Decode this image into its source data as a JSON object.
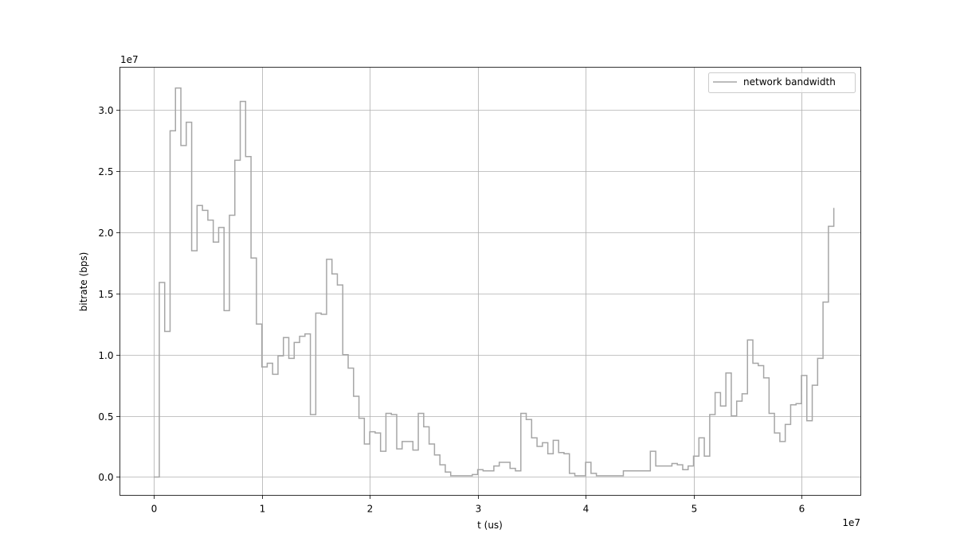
{
  "chart_data": {
    "type": "line",
    "drawstyle": "steps-post",
    "xlabel": "t (us)",
    "ylabel": "bitrate (bps)",
    "x_offset_text": "1e7",
    "y_offset_text": "1e7",
    "xlim": [
      -3150000,
      65500000
    ],
    "ylim": [
      -1500000,
      33500000
    ],
    "x_scale": 10000000,
    "y_scale": 10000000,
    "x_ticks": [
      0,
      10000000,
      20000000,
      30000000,
      40000000,
      50000000,
      60000000
    ],
    "x_tick_labels": [
      "0",
      "1",
      "2",
      "3",
      "4",
      "5",
      "6"
    ],
    "y_ticks": [
      0,
      5000000,
      10000000,
      15000000,
      20000000,
      25000000,
      30000000
    ],
    "y_tick_labels": [
      "0.0",
      "0.5",
      "1.0",
      "1.5",
      "2.0",
      "2.5",
      "3.0"
    ],
    "grid": true,
    "legend_position": "upper right",
    "colors": {
      "series": "#a6a6a6",
      "grid": "#b0b0b0",
      "axes": "#000000"
    },
    "series": [
      {
        "name": "network bandwidth",
        "step_width": 500000,
        "x_start": 0,
        "values": [
          0,
          15900000,
          11900000,
          28300000,
          31800000,
          27100000,
          29000000,
          18500000,
          22200000,
          21800000,
          21000000,
          19200000,
          20400000,
          13600000,
          21400000,
          25900000,
          30700000,
          26200000,
          17900000,
          12500000,
          9000000,
          9300000,
          8400000,
          9900000,
          11400000,
          9700000,
          11000000,
          11500000,
          11700000,
          5100000,
          13400000,
          13300000,
          17800000,
          16600000,
          15700000,
          10000000,
          8900000,
          6600000,
          4800000,
          2700000,
          3700000,
          3600000,
          2100000,
          5200000,
          5100000,
          2300000,
          2900000,
          2900000,
          2200000,
          5200000,
          4100000,
          2700000,
          1800000,
          1000000,
          400000,
          100000,
          100000,
          100000,
          100000,
          200000,
          600000,
          500000,
          500000,
          900000,
          1200000,
          1200000,
          700000,
          500000,
          5200000,
          4700000,
          3200000,
          2500000,
          2800000,
          1900000,
          3000000,
          2000000,
          1900000,
          300000,
          100000,
          100000,
          1200000,
          300000,
          100000,
          100000,
          100000,
          100000,
          100000,
          500000,
          500000,
          500000,
          500000,
          500000,
          2100000,
          900000,
          900000,
          900000,
          1100000,
          1000000,
          600000,
          900000,
          1700000,
          3200000,
          1700000,
          5100000,
          6900000,
          5800000,
          8500000,
          5000000,
          6200000,
          6800000,
          11200000,
          9300000,
          9100000,
          8100000,
          5200000,
          3600000,
          2900000,
          4300000,
          5900000,
          6000000,
          8300000,
          4600000,
          7500000,
          9700000,
          14300000,
          20500000,
          22000000
        ]
      }
    ]
  }
}
